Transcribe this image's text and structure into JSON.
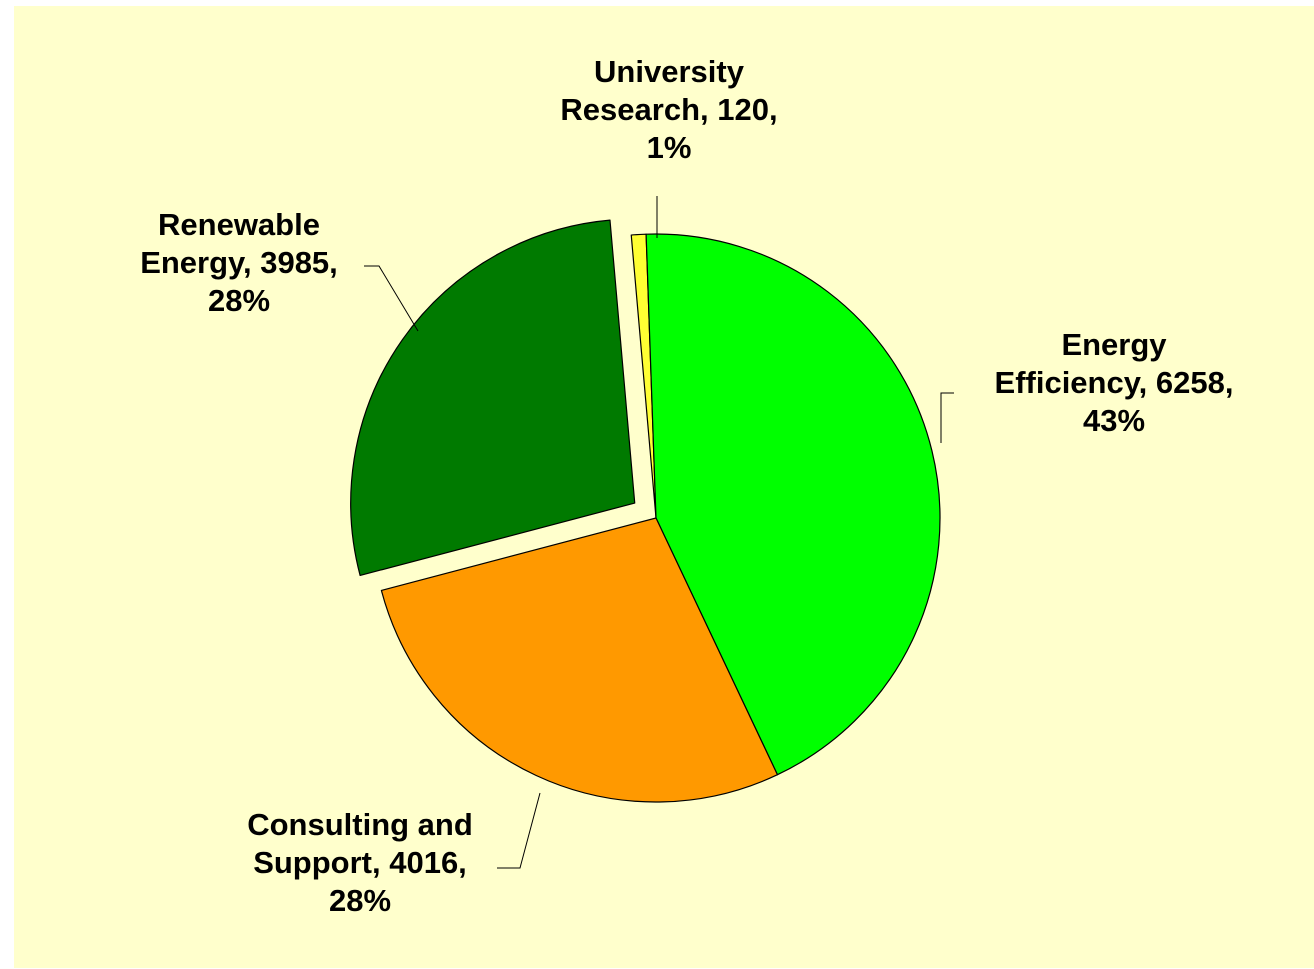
{
  "chart_data": {
    "type": "pie",
    "title": "",
    "slices": [
      {
        "name": "University Research",
        "line1": "University",
        "line2": "Research, 120,",
        "line3": "1%",
        "value": 120,
        "percent": "1%",
        "color": "#ffff33",
        "exploded": false
      },
      {
        "name": "Energy Efficiency",
        "line1": "Energy",
        "line2": "Efficiency, 6258,",
        "line3": "43%",
        "value": 6258,
        "percent": "43%",
        "color": "#00ff00",
        "exploded": false
      },
      {
        "name": "Consulting and Support",
        "line1": "Consulting and",
        "line2": "Support, 4016,",
        "line3": "28%",
        "value": 4016,
        "percent": "28%",
        "color": "#ff9900",
        "exploded": false
      },
      {
        "name": "Renewable Energy",
        "line1": "Renewable",
        "line2": "Energy, 3985,",
        "line3": "28%",
        "value": 3985,
        "percent": "28%",
        "color": "#007a00",
        "exploded": true
      }
    ],
    "start_angle_deg": -5,
    "direction": "clockwise",
    "legend": "none",
    "data_labels": "outside with leader lines",
    "background_color": "#ffffcc"
  }
}
